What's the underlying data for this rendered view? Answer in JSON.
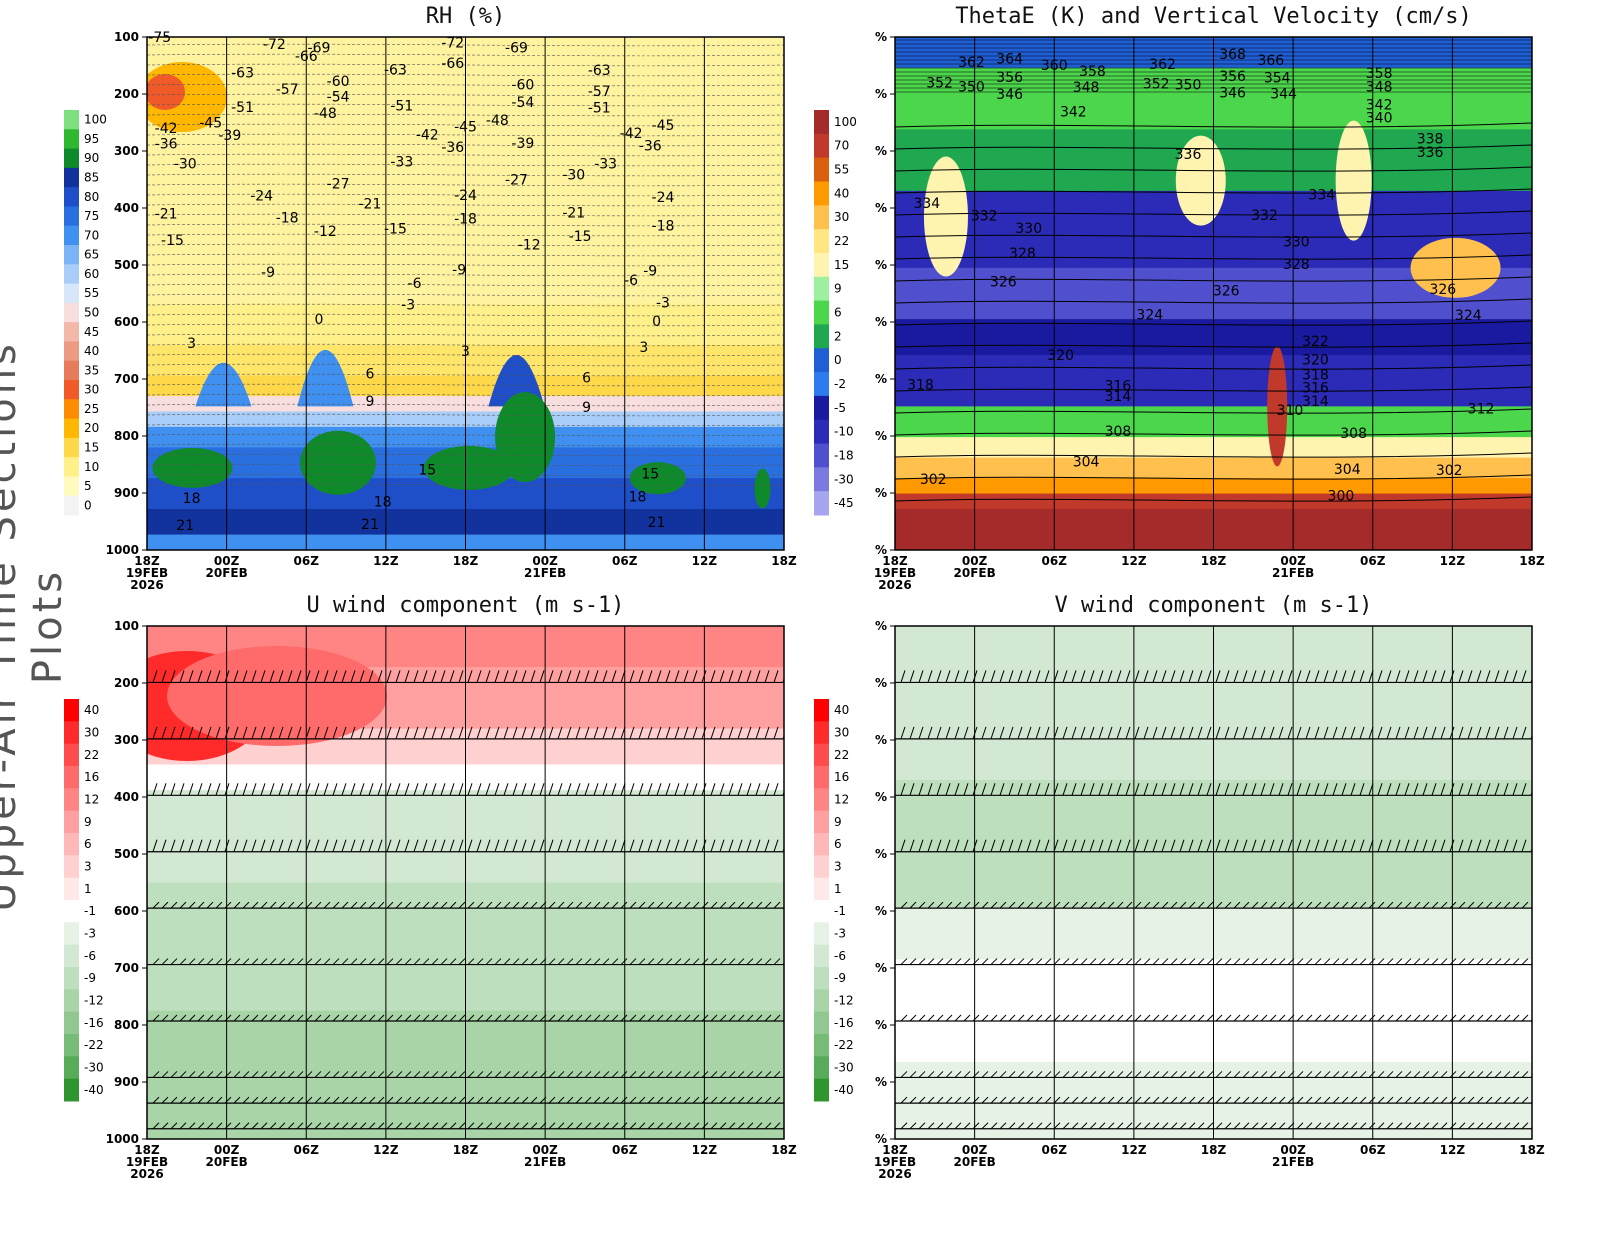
{
  "side_title": "Upper-Air Time Sections Plots",
  "chart_data": [
    {
      "type": "heatmap",
      "title": "RH (%)",
      "xlabel": "",
      "ylabel": "",
      "y_ticks": [
        "100",
        "200",
        "300",
        "400",
        "500",
        "600",
        "700",
        "800",
        "900",
        "1000"
      ],
      "x_ticks": [
        "18Z",
        "00Z",
        "06Z",
        "12Z",
        "18Z",
        "00Z",
        "06Z",
        "12Z",
        "18Z"
      ],
      "x_dates": [
        {
          "i": 0,
          "text": "19FEB"
        },
        {
          "i": 0,
          "text": "2026",
          "row": 2
        },
        {
          "i": 1,
          "text": "20FEB"
        },
        {
          "i": 5,
          "text": "21FEB"
        }
      ],
      "colorbar": {
        "labels": [
          "100",
          "95",
          "90",
          "85",
          "80",
          "75",
          "70",
          "65",
          "60",
          "55",
          "50",
          "45",
          "40",
          "35",
          "30",
          "25",
          "20",
          "15",
          "10",
          "5",
          "0"
        ],
        "colors": [
          "#7fe07f",
          "#2fb82f",
          "#0f8a2a",
          "#12339e",
          "#1f4fc8",
          "#2a6fe0",
          "#3f90f0",
          "#7ab4f5",
          "#a8cdf8",
          "#d8e6fa",
          "#f8dede",
          "#f2b8a8",
          "#ec9a82",
          "#e67c5c",
          "#f05a28",
          "#ff8c00",
          "#ffb700",
          "#ffd84a",
          "#fff08a",
          "#fffbbf",
          "#f3f3f3"
        ]
      },
      "contour_labels": [
        {
          "t": 0.02,
          "p": 100,
          "text": "-75"
        },
        {
          "t": 0.2,
          "p": 112,
          "text": "-72"
        },
        {
          "t": 0.25,
          "p": 133,
          "text": "-66"
        },
        {
          "t": 0.27,
          "p": 118,
          "text": "-69"
        },
        {
          "t": 0.15,
          "p": 162,
          "text": "-63"
        },
        {
          "t": 0.22,
          "p": 191,
          "text": "-57"
        },
        {
          "t": 0.15,
          "p": 223,
          "text": "-51"
        },
        {
          "t": 0.1,
          "p": 250,
          "text": "-45"
        },
        {
          "t": 0.13,
          "p": 272,
          "text": "-39"
        },
        {
          "t": 0.03,
          "p": 260,
          "text": "-42"
        },
        {
          "t": 0.03,
          "p": 287,
          "text": "-36"
        },
        {
          "t": 0.06,
          "p": 322,
          "text": "-30"
        },
        {
          "t": 0.03,
          "p": 410,
          "text": "-21"
        },
        {
          "t": 0.04,
          "p": 456,
          "text": "-15"
        },
        {
          "t": 0.18,
          "p": 378,
          "text": "-24"
        },
        {
          "t": 0.22,
          "p": 417,
          "text": "-18"
        },
        {
          "t": 0.19,
          "p": 512,
          "text": "-9"
        },
        {
          "t": 0.28,
          "p": 440,
          "text": "-12"
        },
        {
          "t": 0.3,
          "p": 177,
          "text": "-60"
        },
        {
          "t": 0.3,
          "p": 204,
          "text": "-54"
        },
        {
          "t": 0.28,
          "p": 233,
          "text": "-48"
        },
        {
          "t": 0.3,
          "p": 357,
          "text": "-27"
        },
        {
          "t": 0.35,
          "p": 392,
          "text": "-21"
        },
        {
          "t": 0.39,
          "p": 436,
          "text": "-15"
        },
        {
          "t": 0.39,
          "p": 157,
          "text": "-63"
        },
        {
          "t": 0.4,
          "p": 220,
          "text": "-51"
        },
        {
          "t": 0.44,
          "p": 271,
          "text": "-42"
        },
        {
          "t": 0.4,
          "p": 318,
          "text": "-33"
        },
        {
          "t": 0.48,
          "p": 110,
          "text": "-72"
        },
        {
          "t": 0.48,
          "p": 146,
          "text": "-66"
        },
        {
          "t": 0.5,
          "p": 257,
          "text": "-45"
        },
        {
          "t": 0.48,
          "p": 293,
          "text": "-36"
        },
        {
          "t": 0.5,
          "p": 377,
          "text": "-24"
        },
        {
          "t": 0.5,
          "p": 418,
          "text": "-18"
        },
        {
          "t": 0.49,
          "p": 508,
          "text": "-9"
        },
        {
          "t": 0.42,
          "p": 532,
          "text": "-6"
        },
        {
          "t": 0.41,
          "p": 569,
          "text": "-3"
        },
        {
          "t": 0.58,
          "p": 118,
          "text": "-69"
        },
        {
          "t": 0.59,
          "p": 183,
          "text": "-60"
        },
        {
          "t": 0.59,
          "p": 214,
          "text": "-54"
        },
        {
          "t": 0.55,
          "p": 246,
          "text": "-48"
        },
        {
          "t": 0.59,
          "p": 286,
          "text": "-39"
        },
        {
          "t": 0.58,
          "p": 350,
          "text": "-27"
        },
        {
          "t": 0.6,
          "p": 464,
          "text": "-12"
        },
        {
          "t": 0.67,
          "p": 341,
          "text": "-30"
        },
        {
          "t": 0.67,
          "p": 408,
          "text": "-21"
        },
        {
          "t": 0.68,
          "p": 449,
          "text": "-15"
        },
        {
          "t": 0.71,
          "p": 158,
          "text": "-63"
        },
        {
          "t": 0.71,
          "p": 195,
          "text": "-57"
        },
        {
          "t": 0.71,
          "p": 224,
          "text": "-51"
        },
        {
          "t": 0.72,
          "p": 322,
          "text": "-33"
        },
        {
          "t": 0.76,
          "p": 268,
          "text": "-42"
        },
        {
          "t": 0.79,
          "p": 290,
          "text": "-36"
        },
        {
          "t": 0.81,
          "p": 254,
          "text": "-45"
        },
        {
          "t": 0.81,
          "p": 381,
          "text": "-24"
        },
        {
          "t": 0.81,
          "p": 431,
          "text": "-18"
        },
        {
          "t": 0.79,
          "p": 510,
          "text": "-9"
        },
        {
          "t": 0.76,
          "p": 526,
          "text": "-6"
        },
        {
          "t": 0.81,
          "p": 566,
          "text": "-3"
        },
        {
          "t": 0.8,
          "p": 598,
          "text": "0"
        },
        {
          "t": 0.78,
          "p": 644,
          "text": "3"
        },
        {
          "t": 0.69,
          "p": 697,
          "text": "6"
        },
        {
          "t": 0.69,
          "p": 749,
          "text": "9"
        },
        {
          "t": 0.27,
          "p": 595,
          "text": "0"
        },
        {
          "t": 0.07,
          "p": 637,
          "text": "3"
        },
        {
          "t": 0.35,
          "p": 690,
          "text": "6"
        },
        {
          "t": 0.35,
          "p": 739,
          "text": "9"
        },
        {
          "t": 0.5,
          "p": 651,
          "text": "3"
        },
        {
          "t": 0.44,
          "p": 859,
          "text": "15"
        },
        {
          "t": 0.07,
          "p": 909,
          "text": "18"
        },
        {
          "t": 0.06,
          "p": 956,
          "text": "21"
        },
        {
          "t": 0.37,
          "p": 915,
          "text": "18"
        },
        {
          "t": 0.35,
          "p": 954,
          "text": "21"
        },
        {
          "t": 0.79,
          "p": 866,
          "text": "15"
        },
        {
          "t": 0.77,
          "p": 906,
          "text": "18"
        },
        {
          "t": 0.8,
          "p": 951,
          "text": "21"
        }
      ]
    },
    {
      "type": "heatmap",
      "title": "ThetaE (K) and Vertical Velocity (cm/s)",
      "xlabel": "",
      "ylabel": "",
      "y_ticks": [
        "%",
        "%",
        "%",
        "%",
        "%",
        "%",
        "%",
        "%",
        "%",
        "%"
      ],
      "x_ticks": [
        "18Z",
        "00Z",
        "06Z",
        "12Z",
        "18Z",
        "00Z",
        "06Z",
        "12Z",
        "18Z"
      ],
      "x_dates": [
        {
          "i": 0,
          "text": "19FEB"
        },
        {
          "i": 0,
          "text": "2026",
          "row": 2
        },
        {
          "i": 1,
          "text": "20FEB"
        },
        {
          "i": 5,
          "text": "21FEB"
        }
      ],
      "colorbar": {
        "labels": [
          "100",
          "70",
          "55",
          "40",
          "30",
          "22",
          "15",
          "9",
          "6",
          "2",
          "0",
          "-2",
          "-5",
          "-10",
          "-18",
          "-30",
          "-45"
        ],
        "colors": [
          "#a52a2a",
          "#c1392b",
          "#d95f0e",
          "#ff9900",
          "#ffc04d",
          "#ffe680",
          "#fff3b0",
          "#9ef09e",
          "#4cd64c",
          "#1fa84f",
          "#1f5fd6",
          "#2e7bf0",
          "#1a1aa0",
          "#2b2bb8",
          "#5050cf",
          "#7a7ae0",
          "#a6a6f0"
        ]
      },
      "contour_labels": [
        {
          "t": 0.12,
          "p": 144,
          "text": "362"
        },
        {
          "t": 0.18,
          "p": 138,
          "text": "364"
        },
        {
          "t": 0.07,
          "p": 180,
          "text": "352"
        },
        {
          "t": 0.12,
          "p": 187,
          "text": "350"
        },
        {
          "t": 0.18,
          "p": 170,
          "text": "356"
        },
        {
          "t": 0.18,
          "p": 200,
          "text": "346"
        },
        {
          "t": 0.25,
          "p": 149,
          "text": "360"
        },
        {
          "t": 0.31,
          "p": 160,
          "text": "358"
        },
        {
          "t": 0.3,
          "p": 188,
          "text": "348"
        },
        {
          "t": 0.28,
          "p": 231,
          "text": "342"
        },
        {
          "t": 0.42,
          "p": 147,
          "text": "362"
        },
        {
          "t": 0.41,
          "p": 182,
          "text": "352"
        },
        {
          "t": 0.46,
          "p": 183,
          "text": "350"
        },
        {
          "t": 0.53,
          "p": 130,
          "text": "368"
        },
        {
          "t": 0.59,
          "p": 140,
          "text": "366"
        },
        {
          "t": 0.53,
          "p": 168,
          "text": "356"
        },
        {
          "t": 0.6,
          "p": 171,
          "text": "354"
        },
        {
          "t": 0.53,
          "p": 197,
          "text": "346"
        },
        {
          "t": 0.61,
          "p": 199,
          "text": "344"
        },
        {
          "t": 0.76,
          "p": 163,
          "text": "358"
        },
        {
          "t": 0.76,
          "p": 187,
          "text": "348"
        },
        {
          "t": 0.76,
          "p": 218,
          "text": "342"
        },
        {
          "t": 0.76,
          "p": 241,
          "text": "340"
        },
        {
          "t": 0.84,
          "p": 278,
          "text": "338"
        },
        {
          "t": 0.84,
          "p": 302,
          "text": "336"
        },
        {
          "t": 0.46,
          "p": 305,
          "text": "336"
        },
        {
          "t": 0.67,
          "p": 376,
          "text": "334"
        },
        {
          "t": 0.05,
          "p": 391,
          "text": "334"
        },
        {
          "t": 0.14,
          "p": 413,
          "text": "332"
        },
        {
          "t": 0.21,
          "p": 435,
          "text": "330"
        },
        {
          "t": 0.2,
          "p": 479,
          "text": "328"
        },
        {
          "t": 0.17,
          "p": 529,
          "text": "326"
        },
        {
          "t": 0.58,
          "p": 412,
          "text": "332"
        },
        {
          "t": 0.63,
          "p": 459,
          "text": "330"
        },
        {
          "t": 0.63,
          "p": 498,
          "text": "328"
        },
        {
          "t": 0.52,
          "p": 545,
          "text": "326"
        },
        {
          "t": 0.4,
          "p": 587,
          "text": "324"
        },
        {
          "t": 0.86,
          "p": 542,
          "text": "326"
        },
        {
          "t": 0.9,
          "p": 588,
          "text": "324"
        },
        {
          "t": 0.26,
          "p": 658,
          "text": "320"
        },
        {
          "t": 0.66,
          "p": 633,
          "text": "322"
        },
        {
          "t": 0.66,
          "p": 666,
          "text": "320"
        },
        {
          "t": 0.66,
          "p": 692,
          "text": "318"
        },
        {
          "t": 0.66,
          "p": 715,
          "text": "316"
        },
        {
          "t": 0.66,
          "p": 739,
          "text": "314"
        },
        {
          "t": 0.35,
          "p": 711,
          "text": "316"
        },
        {
          "t": 0.35,
          "p": 730,
          "text": "314"
        },
        {
          "t": 0.62,
          "p": 754,
          "text": "310"
        },
        {
          "t": 0.72,
          "p": 795,
          "text": "308"
        },
        {
          "t": 0.35,
          "p": 791,
          "text": "308"
        },
        {
          "t": 0.3,
          "p": 845,
          "text": "304"
        },
        {
          "t": 0.71,
          "p": 858,
          "text": "304"
        },
        {
          "t": 0.7,
          "p": 904,
          "text": "300"
        },
        {
          "t": 0.04,
          "p": 710,
          "text": "318"
        },
        {
          "t": 0.92,
          "p": 752,
          "text": "312"
        },
        {
          "t": 0.87,
          "p": 860,
          "text": "302"
        },
        {
          "t": 0.06,
          "p": 875,
          "text": "302"
        }
      ]
    },
    {
      "type": "heatmap",
      "title": "U wind component (m s-1)",
      "xlabel": "",
      "ylabel": "",
      "y_ticks": [
        "100",
        "200",
        "300",
        "400",
        "500",
        "600",
        "700",
        "800",
        "900",
        "1000"
      ],
      "x_ticks": [
        "18Z",
        "00Z",
        "06Z",
        "12Z",
        "18Z",
        "00Z",
        "06Z",
        "12Z",
        "18Z"
      ],
      "x_dates": [
        {
          "i": 0,
          "text": "19FEB"
        },
        {
          "i": 0,
          "text": "2026",
          "row": 2
        },
        {
          "i": 1,
          "text": "20FEB"
        },
        {
          "i": 5,
          "text": "21FEB"
        }
      ],
      "colorbar": {
        "labels": [
          "40",
          "30",
          "22",
          "16",
          "12",
          "9",
          "6",
          "3",
          "1",
          "-1",
          "-3",
          "-6",
          "-9",
          "-12",
          "-16",
          "-22",
          "-30",
          "-40"
        ],
        "colors": [
          "#ff0000",
          "#ff2a2a",
          "#ff4d4d",
          "#ff6a6a",
          "#ff8585",
          "#ffa0a0",
          "#ffb8b8",
          "#ffd0d0",
          "#ffe8e8",
          "#ffffff",
          "#e6f2e6",
          "#d2e8d2",
          "#bedfbe",
          "#a8d4a8",
          "#91c891",
          "#76bb76",
          "#58ab58",
          "#2f962f"
        ]
      },
      "contour_labels": []
    },
    {
      "type": "heatmap",
      "title": "V wind component (m s-1)",
      "xlabel": "",
      "ylabel": "",
      "y_ticks": [
        "%",
        "%",
        "%",
        "%",
        "%",
        "%",
        "%",
        "%",
        "%",
        "%"
      ],
      "x_ticks": [
        "18Z",
        "00Z",
        "06Z",
        "12Z",
        "18Z",
        "00Z",
        "06Z",
        "12Z",
        "18Z"
      ],
      "x_dates": [
        {
          "i": 0,
          "text": "19FEB"
        },
        {
          "i": 0,
          "text": "2026",
          "row": 2
        },
        {
          "i": 1,
          "text": "20FEB"
        },
        {
          "i": 5,
          "text": "21FEB"
        }
      ],
      "colorbar": {
        "labels": [
          "40",
          "30",
          "22",
          "16",
          "12",
          "9",
          "6",
          "3",
          "1",
          "-1",
          "-3",
          "-6",
          "-9",
          "-12",
          "-16",
          "-22",
          "-30",
          "-40"
        ],
        "colors": [
          "#ff0000",
          "#ff2a2a",
          "#ff4d4d",
          "#ff6a6a",
          "#ff8585",
          "#ffa0a0",
          "#ffb8b8",
          "#ffd0d0",
          "#ffe8e8",
          "#ffffff",
          "#e6f2e6",
          "#d2e8d2",
          "#bedfbe",
          "#a8d4a8",
          "#91c891",
          "#76bb76",
          "#58ab58",
          "#2f962f"
        ]
      },
      "contour_labels": []
    }
  ]
}
